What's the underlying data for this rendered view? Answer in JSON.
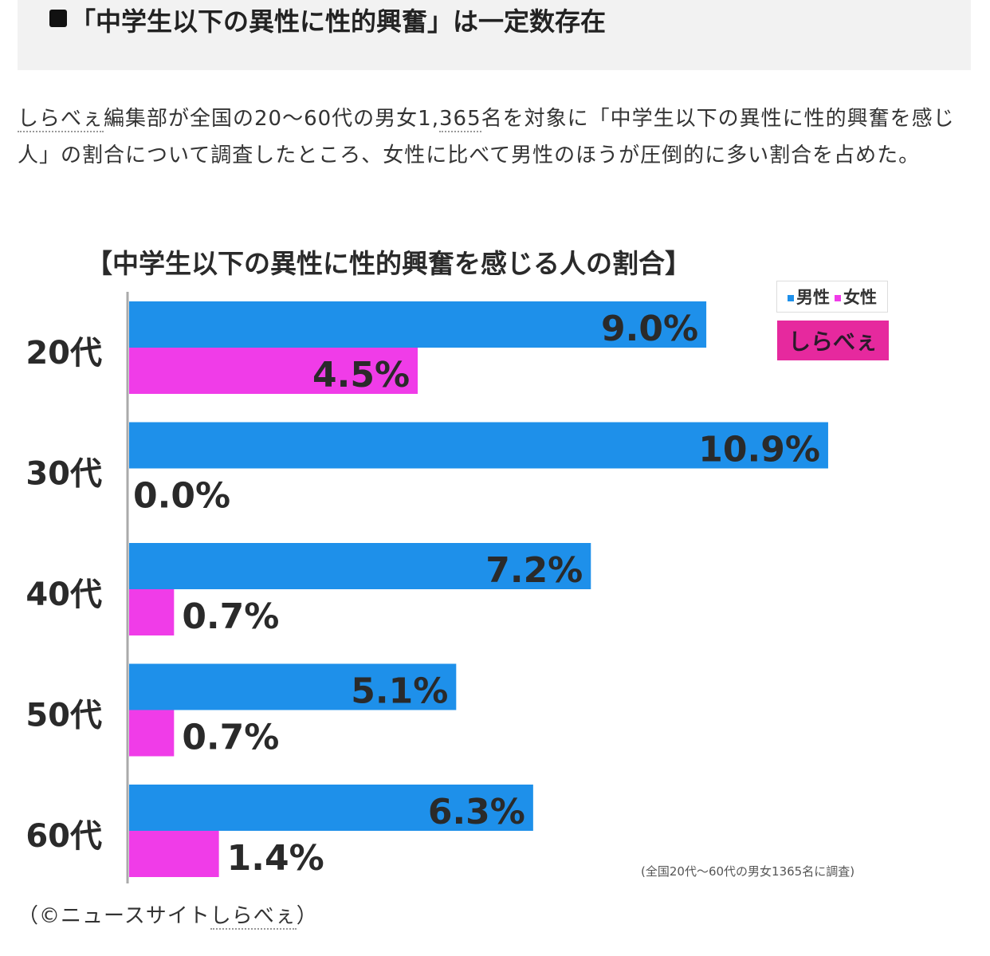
{
  "heading": {
    "text": "「中学生以下の異性に性的興奮」は一定数存在"
  },
  "intro": {
    "link1": "しらべぇ",
    "part1": "編集部が全国の20〜60代の男女1,",
    "link2": "365",
    "part2": "名を対象に「中学生以下の異性に性的興奮を感じ人」の割合について調査したところ、女性に比べて男性のほうが圧倒的に多い割合を占めた。"
  },
  "legend": {
    "male_label": "男性",
    "female_label": "女性"
  },
  "logo": {
    "text": "しらべぇ"
  },
  "note": "(全国20代〜60代の男女1365名に調査)",
  "credit": {
    "open": "（©ニュースサイト",
    "link": "しらべぇ",
    "close": "）"
  },
  "colors": {
    "male": "#1e90ea",
    "female": "#f03ce8",
    "axis": "#aaaaaa"
  },
  "chart_data": {
    "type": "bar",
    "orientation": "horizontal",
    "title": "【中学生以下の異性に性的興奮を感じる人の割合】",
    "categories": [
      "20代",
      "30代",
      "40代",
      "50代",
      "60代"
    ],
    "series": [
      {
        "name": "男性",
        "values": [
          9.0,
          10.9,
          7.2,
          5.1,
          6.3
        ],
        "labels": [
          "9.0%",
          "10.9%",
          "7.2%",
          "5.1%",
          "6.3%"
        ]
      },
      {
        "name": "女性",
        "values": [
          4.5,
          0.0,
          0.7,
          0.7,
          1.4
        ],
        "labels": [
          "4.5%",
          "0.0%",
          "0.7%",
          "0.7%",
          "1.4%"
        ]
      }
    ],
    "unit": "%",
    "xlim": [
      0,
      11.0
    ],
    "legend_position": "top-right",
    "grid": false
  }
}
